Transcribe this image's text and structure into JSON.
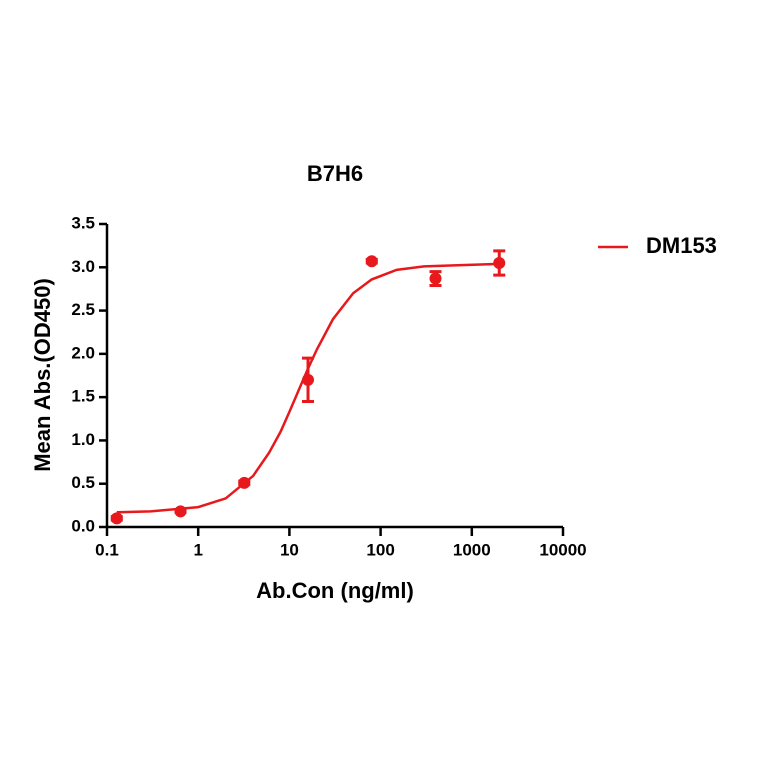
{
  "chart_data": {
    "type": "scatter-fit",
    "title": "B7H6",
    "x_label": "Ab.Con (ng/ml)",
    "y_label": "Mean Abs.(OD450)",
    "xscale": "log",
    "xlim": [
      0.1,
      10000
    ],
    "xticks": [
      0.1,
      1,
      10,
      100,
      1000,
      10000
    ],
    "ylim": [
      0,
      3.5
    ],
    "yticks": [
      {
        "value": 0,
        "label": "0.0"
      },
      {
        "value": 0.5,
        "label": "0.5"
      },
      {
        "value": 1,
        "label": "1.0"
      },
      {
        "value": 1.5,
        "label": "1.5"
      },
      {
        "value": 2,
        "label": "2.0"
      },
      {
        "value": 2.5,
        "label": "2.5"
      },
      {
        "value": 3,
        "label": "3.0"
      },
      {
        "value": 3.5,
        "label": "3.5"
      }
    ],
    "legend": "upper right",
    "series": [
      {
        "name": "DM153",
        "color": "#e8191c",
        "x": [
          0.128,
          0.64,
          3.2,
          16,
          80,
          400,
          2000
        ],
        "values": [
          0.1,
          0.18,
          0.51,
          1.7,
          3.07,
          2.87,
          3.05
        ],
        "errors": [
          0.02,
          0.01,
          0.02,
          0.25,
          0.02,
          0.08,
          0.14
        ],
        "fit_x": [
          0.128,
          0.3,
          1,
          2,
          4,
          6,
          8,
          10,
          13,
          16,
          20,
          30,
          50,
          80,
          150,
          300,
          2000
        ],
        "fit_values": [
          0.17,
          0.18,
          0.23,
          0.33,
          0.59,
          0.86,
          1.1,
          1.33,
          1.61,
          1.83,
          2.05,
          2.4,
          2.7,
          2.86,
          2.97,
          3.01,
          3.04
        ]
      }
    ]
  }
}
